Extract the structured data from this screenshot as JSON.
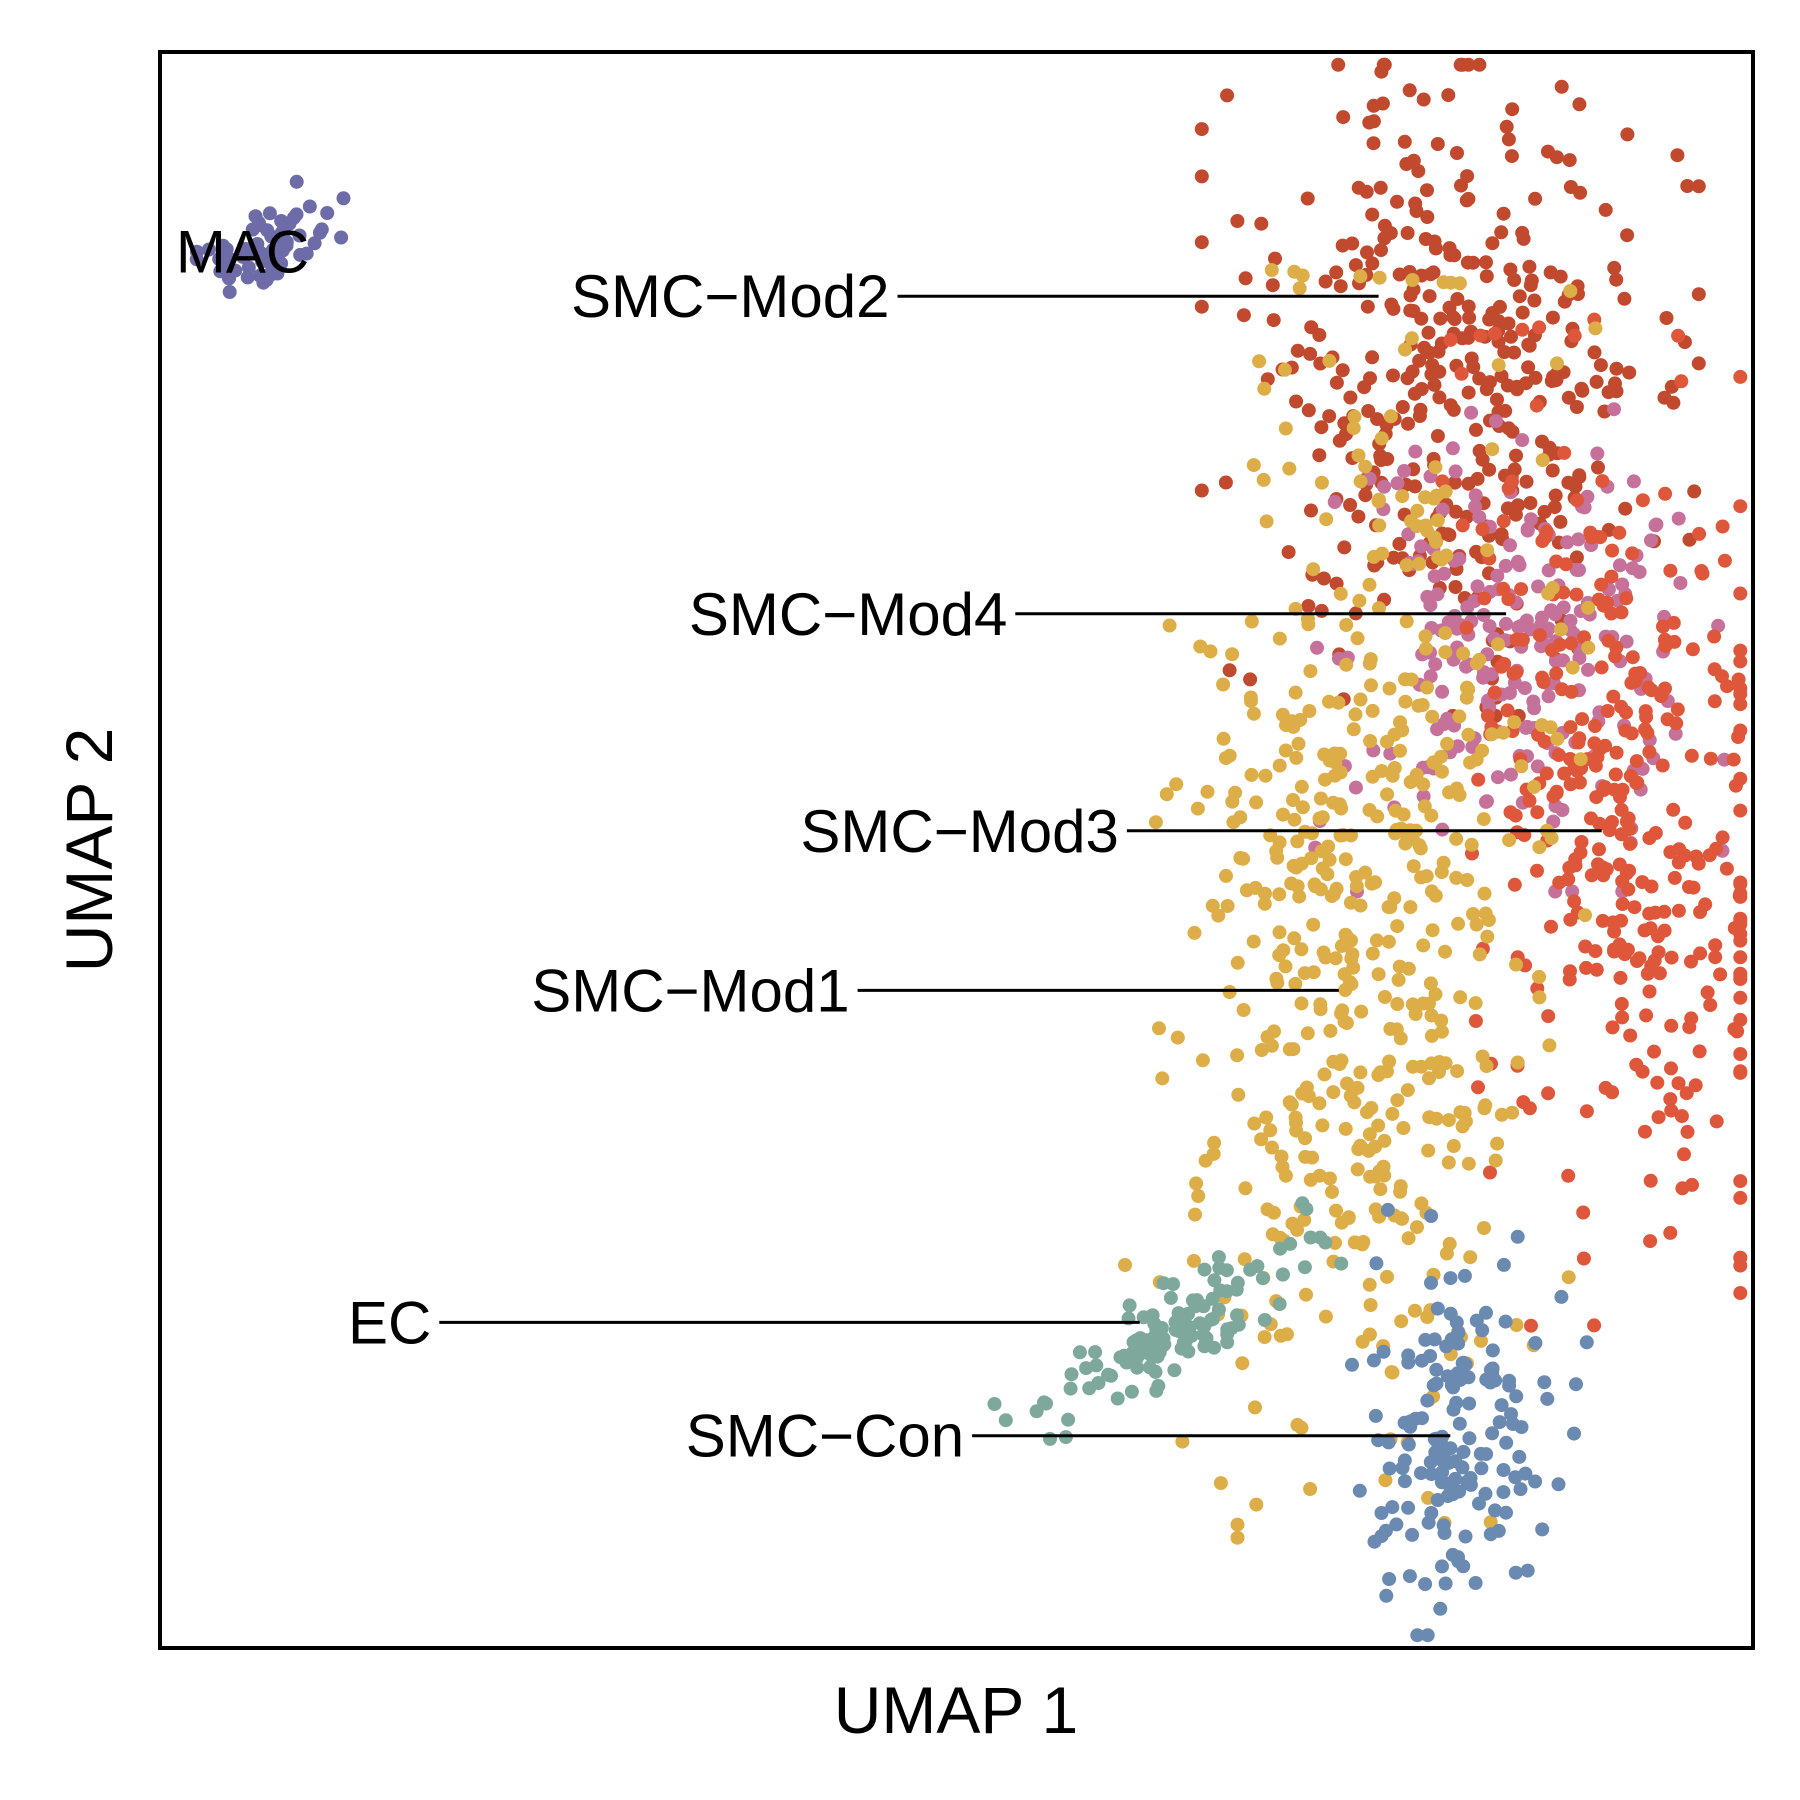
{
  "chart_data": {
    "type": "scatter",
    "title": "",
    "xlabel": "UMAP 1",
    "ylabel": "UMAP 2",
    "xlim": [
      0,
      100
    ],
    "ylim": [
      0,
      100
    ],
    "grid": false,
    "legend": "none",
    "clusters": [
      {
        "label": "MAC",
        "color": "#6E6BA9",
        "points": 70,
        "center": [
          6.5,
          87.5
        ],
        "spread": [
          2.5,
          1.2
        ],
        "rotation": 28,
        "label_pos": [
          1.0,
          87.5
        ],
        "anchor": null
      },
      {
        "label": "SMC−Mod2",
        "color": "#C1492E",
        "points": 380,
        "center": [
          81,
          80
        ],
        "spread": [
          6.5,
          9.0
        ],
        "rotation": 0,
        "label_pos": [
          25.8,
          84.7
        ],
        "anchor": [
          76.5,
          84.7
        ]
      },
      {
        "label": "SMC−Mod4",
        "color": "#C57199",
        "points": 220,
        "center": [
          85,
          63
        ],
        "spread": [
          5.5,
          6.5
        ],
        "rotation": 0,
        "label_pos": [
          33.2,
          64.8
        ],
        "anchor": [
          84.5,
          64.8
        ]
      },
      {
        "label": "SMC−Mod3",
        "color": "#DF573B",
        "points": 360,
        "center": [
          92,
          52
        ],
        "spread": [
          4.8,
          13.0
        ],
        "rotation": 8,
        "label_pos": [
          40.2,
          51.2
        ],
        "anchor": [
          90.5,
          51.2
        ]
      },
      {
        "label": "SMC−Mod1",
        "color": "#DDAE48",
        "points": 560,
        "center": [
          76,
          45
        ],
        "spread": [
          5.8,
          17.0
        ],
        "rotation": -4,
        "label_pos": [
          23.3,
          41.2
        ],
        "anchor": [
          74.0,
          41.2
        ]
      },
      {
        "label": "EC",
        "color": "#7FA89C",
        "points": 120,
        "center": [
          63.5,
          19.5
        ],
        "spread": [
          4.8,
          1.3
        ],
        "rotation": 35,
        "label_pos": [
          11.8,
          20.4
        ],
        "anchor": [
          61.5,
          20.4
        ]
      },
      {
        "label": "SMC−Con",
        "color": "#6A8AB1",
        "points": 160,
        "center": [
          81.5,
          13.5
        ],
        "spread": [
          3.0,
          5.5
        ],
        "rotation": -8,
        "label_pos": [
          33.0,
          13.3
        ],
        "anchor": [
          81.0,
          13.3
        ]
      }
    ]
  }
}
